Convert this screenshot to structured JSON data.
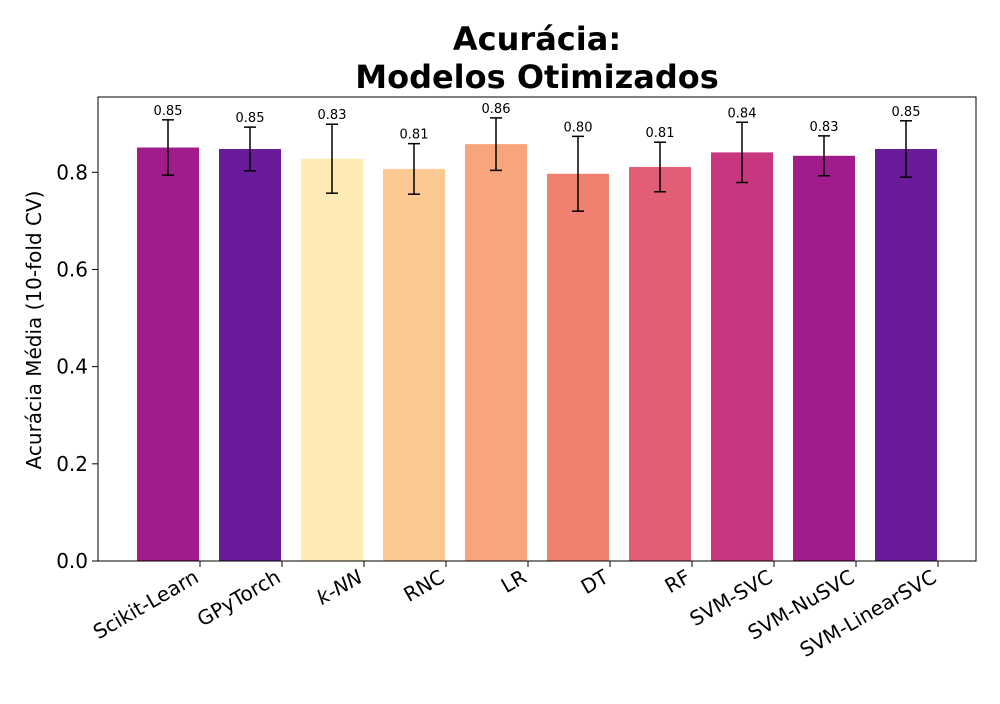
{
  "chart_data": {
    "type": "bar",
    "title_lines": [
      "Acurácia:",
      "Modelos Otimizados"
    ],
    "xlabel": "",
    "ylabel": "Acurácia Média (10-fold CV)",
    "ylim": [
      0,
      0.955
    ],
    "yticks": [
      "0.0",
      "0.2",
      "0.4",
      "0.6",
      "0.8"
    ],
    "ytick_values": [
      0.0,
      0.2,
      0.4,
      0.6,
      0.8
    ],
    "categories": [
      "Scikit-Learn",
      "GPyTorch",
      "k-NN",
      "RNC",
      "LR",
      "DT",
      "RF",
      "SVM-SVC",
      "SVM-NuSVC",
      "SVM-LinearSVC"
    ],
    "category_italic": [
      false,
      false,
      true,
      false,
      false,
      false,
      false,
      false,
      false,
      false
    ],
    "values": [
      0.851,
      0.848,
      0.828,
      0.807,
      0.858,
      0.797,
      0.811,
      0.841,
      0.834,
      0.848
    ],
    "errors": [
      0.057,
      0.045,
      0.071,
      0.052,
      0.054,
      0.077,
      0.051,
      0.062,
      0.041,
      0.058
    ],
    "data_labels": [
      "0.85",
      "0.85",
      "0.83",
      "0.81",
      "0.86",
      "0.80",
      "0.81",
      "0.84",
      "0.83",
      "0.85"
    ],
    "colors": [
      "#a11b8b",
      "#6a1b9a",
      "#feeab4",
      "#fcc993",
      "#f8a57c",
      "#f08070",
      "#e25e76",
      "#c73880",
      "#a11b8b",
      "#6a1b9a"
    ],
    "grid": false,
    "legend": "none"
  }
}
